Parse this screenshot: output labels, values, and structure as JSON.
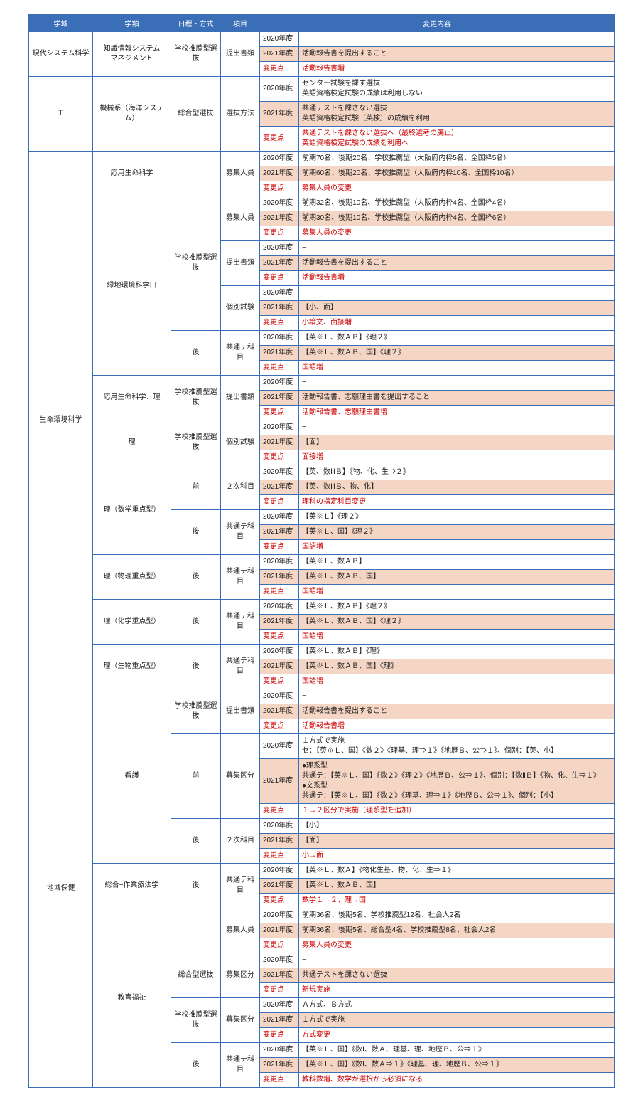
{
  "headers": [
    "学域",
    "学類",
    "日程・方式",
    "項目",
    "変更内容"
  ],
  "labels": {
    "y2020": "2020年度",
    "y2021": "2021年度",
    "change": "変更点"
  },
  "groups": [
    {
      "domain": "現代システム科学",
      "blocks": [
        {
          "dept": "知識情報システム\nマネジメント",
          "method": "学校推薦型選抜",
          "item": "提出書類",
          "y2020": "−",
          "y2021": "活動報告書を提出すること",
          "change": "活動報告書増"
        }
      ]
    },
    {
      "domain": "工",
      "blocks": [
        {
          "dept": "機械系（海洋システム）",
          "method": "総合型選抜",
          "item": "選抜方法",
          "y2020": "センター試験を課す選抜\n英語資格検定試験の成績は利用しない",
          "y2021": "共通テストを課さない選抜\n英語資格検定試験（英検）の成績を利用",
          "change": "共通テストを課さない選抜へ（最終選考の廃止）\n英語資格検定試験の成績を利用へ"
        }
      ]
    },
    {
      "domain": "生命環境科学",
      "blocks": [
        {
          "dept": "応用生命科学",
          "method": "",
          "item": "募集人員",
          "y2020": "前期70名、後期20名、学校推薦型（大阪府内枠5名、全国枠5名）",
          "y2021": "前期60名、後期20名、学校推薦型（大阪府内枠10名、全国枠10名）",
          "change": "募集人員の変更"
        },
        {
          "dept": "緑地環境科学口",
          "method": "学校推薦型選抜",
          "deptRows": 12,
          "methodRows": 12,
          "items": [
            {
              "item": "募集人員",
              "y2020": "前期32名、後期10名、学校推薦型（大阪府内枠4名、全国枠4名）",
              "y2021": "前期30名、後期10名、学校推薦型（大阪府内枠4名、全国枠6名）",
              "change": "募集人員の変更"
            },
            {
              "item": "提出書類",
              "y2020": "−",
              "y2021": "活動報告書を提出すること",
              "change": "活動報告書増"
            },
            {
              "item": "個別試験",
              "y2020": "−",
              "y2021": "【小、面】",
              "change": "小論文、面接増"
            },
            {
              "item": "共通テ科目",
              "method2": "後",
              "y2020": "【英※Ｌ、数ＡＢ】《理２》",
              "y2021": "【英※Ｌ、数ＡＢ、国】《理２》",
              "change": "国語増"
            }
          ]
        },
        {
          "dept": "応用生命科学、理",
          "method": "学校推薦型選抜",
          "item": "提出書類",
          "y2020": "−",
          "y2021": "活動報告書、志願理由書を提出すること",
          "change": "活動報告書、志願理由書増"
        },
        {
          "dept": "理",
          "method": "学校推薦型選抜",
          "item": "個別試験",
          "y2020": "−",
          "y2021": "【面】",
          "change": "面接増"
        },
        {
          "dept": "理（数学重点型）",
          "deptRows": 6,
          "items": [
            {
              "method": "前",
              "item": "２次科目",
              "y2020": "【英、数ⅢＢ】《物、化、生⇒２》",
              "y2021": "【英、数ⅢＢ、物、化】",
              "change": "理科の指定科目変更"
            },
            {
              "method": "後",
              "item": "共通テ科目",
              "y2020": "【英※Ｌ】《理２》",
              "y2021": "【英※Ｌ、国】《理２》",
              "change": "国語増"
            }
          ]
        },
        {
          "dept": "理（物理重点型）",
          "method": "後",
          "item": "共通テ科目",
          "y2020": "【英※Ｌ、数ＡＢ】",
          "y2021": "【英※Ｌ、数ＡＢ、国】",
          "change": "国語増"
        },
        {
          "dept": "理（化学重点型）",
          "method": "後",
          "item": "共通テ科目",
          "y2020": "【英※Ｌ、数ＡＢ】《理２》",
          "y2021": "【英※Ｌ、数ＡＢ、国】《理２》",
          "change": "国語増"
        },
        {
          "dept": "理（生物重点型）",
          "method": "後",
          "item": "共通テ科目",
          "y2020": "【英※Ｌ、数ＡＢ】《理》",
          "y2021": "【英※Ｌ、数ＡＢ、国】《理》",
          "change": "国語増"
        }
      ]
    },
    {
      "domain": "地域保健",
      "blocks": [
        {
          "dept": "看護",
          "deptRows": 9,
          "items": [
            {
              "method": "学校推薦型選抜",
              "item": "提出書類",
              "y2020": "−",
              "y2021": "活動報告書を提出すること",
              "change": "活動報告書増"
            },
            {
              "method": "前",
              "item": "募集区分",
              "y2020": "１方式で実施\nセ：【英※Ｌ、国】《数２》《理基、理⇒１》《地歴Ｂ、公⇒１》、個別：【英、小】",
              "y2021": "●理系型\n共通テ：【英※Ｌ、国】《数２》《理２》《地歴Ｂ、公⇒１》、個別：【数ⅡＢ】《物、化、生⇒１》\n●文系型\n共通テ：【英※Ｌ、国】《数２》《理基、理⇒１》《地歴Ｂ、公⇒１》、個別：【小】",
              "change": "１→２区分で実施（理系型を追加）"
            },
            {
              "method": "後",
              "item": "２次科目",
              "y2020": "【小】",
              "y2021": "【面】",
              "change": "小→面"
            }
          ]
        },
        {
          "dept": "総合−作業療法学",
          "method": "後",
          "item": "共通テ科目",
          "y2020": "【英※Ｌ、数Ａ】《物化生基、物、化、生⇒１》",
          "y2021": "【英※Ｌ、数ＡＢ、国】",
          "change": "数学１→２、理→国"
        },
        {
          "dept": "教育福祉",
          "deptRows": 12,
          "items": [
            {
              "method": "",
              "item": "募集人員",
              "y2020": "前期36名、後期5名、学校推薦型12名、社会人2名",
              "y2021": "前期36名、後期5名、総合型4名、学校推薦型8名、社会人2名",
              "change": "募集人員の変更"
            },
            {
              "method": "総合型選抜",
              "item": "募集区分",
              "y2020": "−",
              "y2021": "共通テストを課さない選抜",
              "change": "新規実施"
            },
            {
              "method": "学校推薦型選抜",
              "item": "募集区分",
              "y2020": "Ａ方式、Ｂ方式",
              "y2021": "１方式で実施",
              "change": "方式変更"
            },
            {
              "method": "後",
              "item": "共通テ科目",
              "y2020": "【英※Ｌ、国】《数Ⅰ、数Ａ、理基、理、地歴Ｂ、公⇒１》",
              "y2021": "【英※Ｌ、国】《数Ⅰ、数Ａ⇒１》《理基、理、地歴Ｂ、公⇒１》",
              "change": "教科数増、数学が選択から必須になる"
            }
          ]
        }
      ]
    }
  ]
}
